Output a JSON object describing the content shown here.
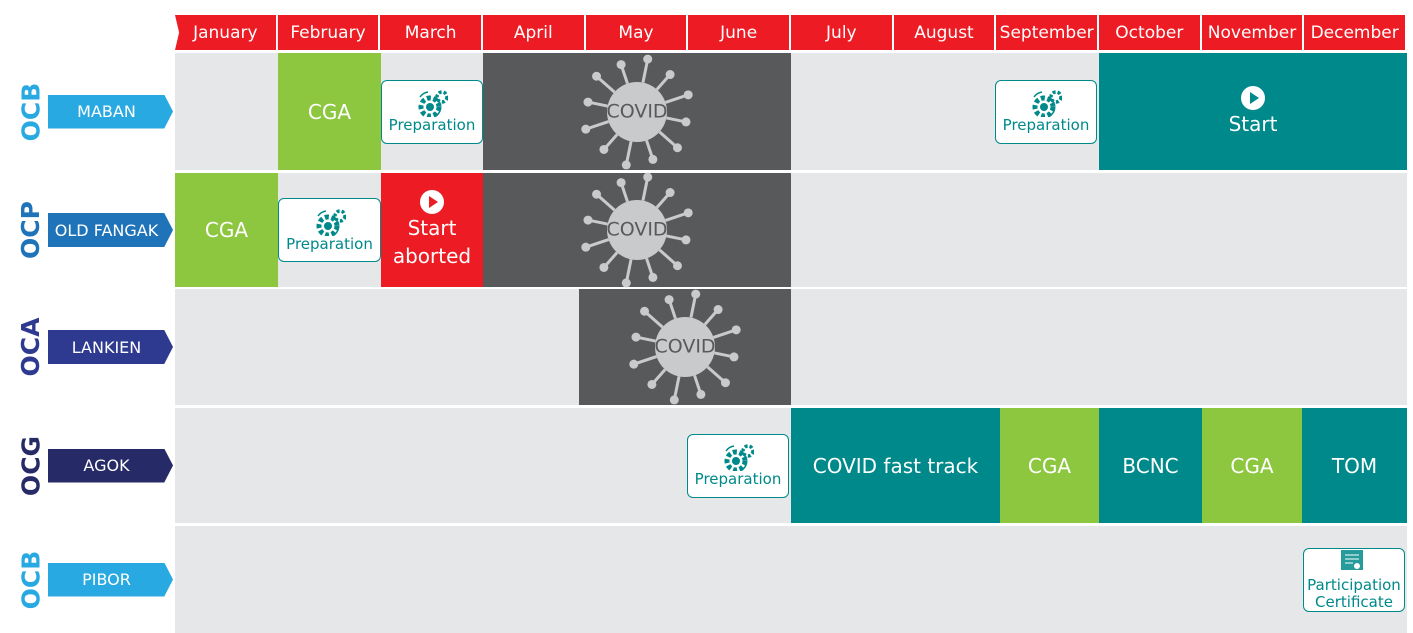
{
  "months": [
    "January",
    "February",
    "March",
    "April",
    "May",
    "June",
    "July",
    "August",
    "September",
    "October",
    "November",
    "December"
  ],
  "rows": [
    {
      "org": "OCB",
      "site": "MABAN",
      "items": [
        {
          "label": "CGA"
        },
        {
          "label": "Preparation"
        },
        {
          "label": "COVID"
        },
        {
          "label": "Preparation"
        },
        {
          "label": "Start"
        }
      ]
    },
    {
      "org": "OCP",
      "site": "OLD FANGAK",
      "items": [
        {
          "label": "CGA"
        },
        {
          "label": "Preparation"
        },
        {
          "label": "Start aborted"
        },
        {
          "label": "COVID"
        }
      ]
    },
    {
      "org": "OCA",
      "site": "LANKIEN",
      "items": [
        {
          "label": "COVID"
        }
      ]
    },
    {
      "org": "OCG",
      "site": "AGOK",
      "items": [
        {
          "label": "Preparation"
        },
        {
          "label": "COVID fast track"
        },
        {
          "label": "CGA"
        },
        {
          "label": "BCNC"
        },
        {
          "label": "CGA"
        },
        {
          "label": "TOM"
        }
      ]
    },
    {
      "org": "OCB",
      "site": "PIBOR",
      "items": [
        {
          "label": "Participation Certificate"
        }
      ]
    }
  ]
}
